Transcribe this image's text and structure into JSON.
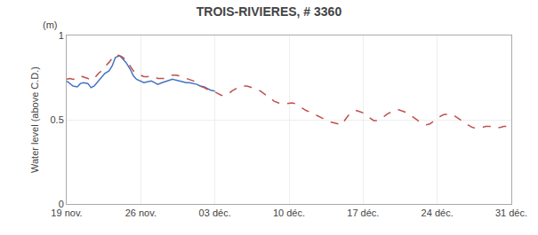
{
  "chart_data": {
    "type": "line",
    "title": "TROIS-RIVIERES, # 3360",
    "y_label": "Water level (above C.D.)",
    "annotations": [
      "(m)"
    ],
    "xlim": [
      0,
      42
    ],
    "xticks": [
      {
        "value": 0,
        "label": "19 nov."
      },
      {
        "value": 7,
        "label": "26 nov."
      },
      {
        "value": 14,
        "label": "03 déc."
      },
      {
        "value": 21,
        "label": "10 déc."
      },
      {
        "value": 28,
        "label": "17 déc."
      },
      {
        "value": 35,
        "label": "24 déc."
      },
      {
        "value": 42,
        "label": "31 déc."
      }
    ],
    "ylim": [
      0,
      1.0
    ],
    "yticks": [
      0,
      0.5,
      1
    ],
    "grid": true,
    "series": [
      {
        "color": "#4472c4",
        "line_style": "solid",
        "x": [
          0,
          0.3,
          0.6,
          1.0,
          1.3,
          1.6,
          2.0,
          2.3,
          2.6,
          3.0,
          3.3,
          3.6,
          4.0,
          4.3,
          4.6,
          5.0,
          5.3,
          5.6,
          6.0,
          6.3,
          6.6,
          7.0,
          7.3,
          7.6,
          8.0,
          8.3,
          8.6,
          9.0,
          9.3,
          9.6,
          10.0,
          10.3,
          10.6,
          11.0,
          11.3,
          11.6,
          12.0,
          12.3,
          12.6,
          13.0,
          13.3,
          13.6,
          14.0
        ],
        "values": [
          0.73,
          0.715,
          0.7,
          0.695,
          0.715,
          0.72,
          0.715,
          0.69,
          0.7,
          0.73,
          0.75,
          0.775,
          0.79,
          0.82,
          0.87,
          0.88,
          0.86,
          0.84,
          0.8,
          0.76,
          0.74,
          0.73,
          0.72,
          0.725,
          0.73,
          0.72,
          0.71,
          0.72,
          0.725,
          0.73,
          0.74,
          0.735,
          0.73,
          0.725,
          0.72,
          0.72,
          0.715,
          0.71,
          0.7,
          0.695,
          0.685,
          0.675,
          0.67
        ]
      },
      {
        "color": "#c0504d",
        "line_style": "dashed",
        "x": [
          0,
          0.3,
          0.6,
          1.0,
          1.3,
          1.6,
          2.0,
          2.3,
          2.6,
          3.0,
          3.3,
          3.6,
          4.0,
          4.3,
          4.6,
          5.0,
          5.3,
          5.6,
          6.0,
          6.3,
          6.6,
          7.0,
          7.3,
          7.6,
          8.0,
          8.3,
          8.6,
          9.0,
          9.3,
          9.6,
          10.0,
          10.3,
          10.6,
          11.0,
          11.3,
          11.6,
          12.0,
          12.3,
          12.6,
          13.0,
          13.3,
          13.6,
          14.0,
          14.3,
          14.6,
          15.0,
          15.3,
          15.6,
          16.0,
          16.3,
          16.6,
          17.0,
          17.3,
          17.6,
          18.0,
          18.3,
          18.6,
          19.0,
          19.3,
          19.6,
          20.0,
          20.3,
          20.6,
          21.0,
          21.3,
          21.6,
          22.0,
          22.3,
          22.6,
          23.0,
          23.3,
          23.6,
          24.0,
          24.3,
          24.6,
          25.0,
          25.3,
          25.6,
          26.0,
          26.3,
          26.6,
          27.0,
          27.3,
          27.6,
          28.0,
          28.3,
          28.6,
          29.0,
          29.3,
          29.6,
          30.0,
          30.3,
          30.6,
          31.0,
          31.3,
          31.6,
          32.0,
          32.3,
          32.6,
          33.0,
          33.3,
          33.6,
          34.0,
          34.3,
          34.6,
          35.0,
          35.3,
          35.6,
          36.0,
          36.3,
          36.6,
          37.0,
          37.3,
          37.6,
          38.0,
          38.3,
          38.6,
          39.0,
          39.3,
          39.6,
          40.0,
          40.3,
          40.6,
          41.0,
          41.3,
          41.6,
          42.0
        ],
        "values": [
          0.74,
          0.745,
          0.74,
          0.745,
          0.76,
          0.755,
          0.745,
          0.735,
          0.745,
          0.775,
          0.79,
          0.815,
          0.84,
          0.865,
          0.885,
          0.88,
          0.87,
          0.855,
          0.82,
          0.79,
          0.775,
          0.765,
          0.755,
          0.755,
          0.76,
          0.755,
          0.745,
          0.745,
          0.745,
          0.755,
          0.765,
          0.765,
          0.76,
          0.755,
          0.745,
          0.74,
          0.73,
          0.715,
          0.7,
          0.69,
          0.68,
          0.67,
          0.665,
          0.655,
          0.645,
          0.645,
          0.655,
          0.67,
          0.685,
          0.695,
          0.7,
          0.7,
          0.695,
          0.69,
          0.68,
          0.67,
          0.655,
          0.64,
          0.625,
          0.61,
          0.6,
          0.595,
          0.595,
          0.6,
          0.6,
          0.595,
          0.58,
          0.565,
          0.555,
          0.545,
          0.535,
          0.525,
          0.515,
          0.505,
          0.495,
          0.485,
          0.48,
          0.475,
          0.47,
          0.5,
          0.525,
          0.545,
          0.555,
          0.55,
          0.54,
          0.525,
          0.51,
          0.495,
          0.495,
          0.505,
          0.52,
          0.535,
          0.545,
          0.555,
          0.56,
          0.555,
          0.545,
          0.535,
          0.52,
          0.505,
          0.49,
          0.48,
          0.47,
          0.475,
          0.49,
          0.505,
          0.52,
          0.53,
          0.535,
          0.535,
          0.525,
          0.51,
          0.495,
          0.48,
          0.465,
          0.455,
          0.45,
          0.45,
          0.455,
          0.46,
          0.46,
          0.455,
          0.45,
          0.455,
          0.46,
          0.46,
          0.455
        ]
      }
    ]
  }
}
